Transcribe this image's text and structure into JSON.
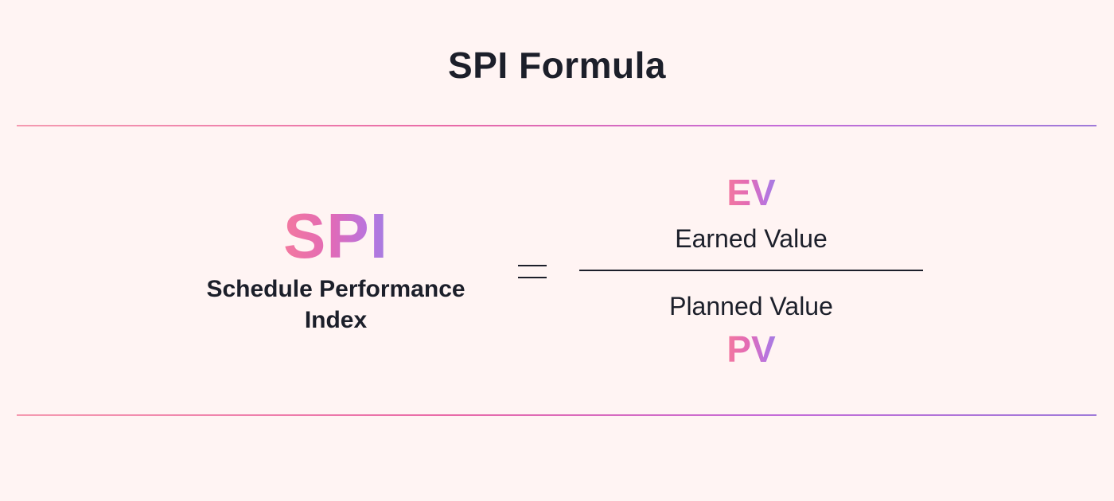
{
  "title": "SPI Formula",
  "lhs": {
    "abbreviation": "SPI",
    "name": "Schedule Performance Index"
  },
  "operator": "=",
  "numerator": {
    "abbreviation": "EV",
    "label": "Earned Value"
  },
  "denominator": {
    "abbreviation": "PV",
    "label": "Planned Value"
  },
  "colors": {
    "background": "#fff4f3",
    "text": "#1c1f2a",
    "gradient_start": "#f3799f",
    "gradient_end": "#a57de0"
  }
}
